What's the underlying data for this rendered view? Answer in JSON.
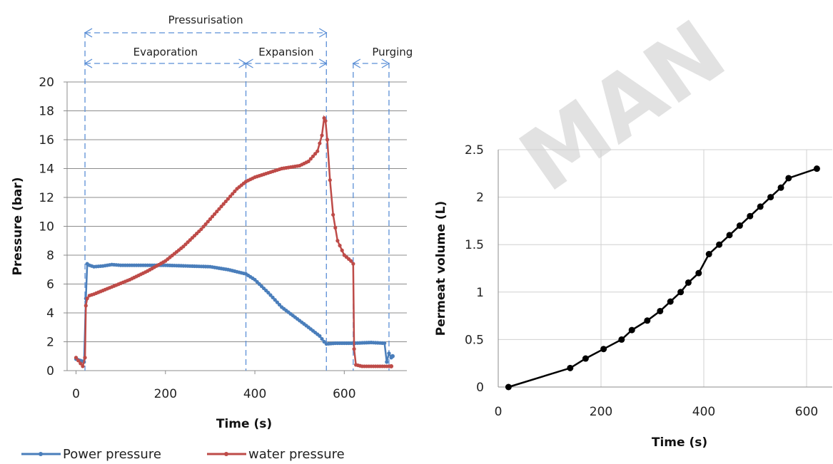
{
  "watermark": "MAN",
  "chart_data": [
    {
      "type": "line",
      "xlabel": "Time (s)",
      "ylabel": "Pressure (bar)",
      "xlim": [
        -20,
        740
      ],
      "ylim": [
        0,
        20
      ],
      "xticks": [
        0,
        200,
        400,
        600
      ],
      "yticks": [
        0,
        2,
        4,
        6,
        8,
        10,
        12,
        14,
        16,
        18,
        20
      ],
      "grid": "horizontal",
      "legend_position": "bottom",
      "series": [
        {
          "name": "Power pressure",
          "color": "#4a7ebb",
          "x": [
            0,
            10,
            18,
            22,
            25,
            30,
            40,
            60,
            80,
            100,
            150,
            200,
            250,
            300,
            340,
            380,
            400,
            430,
            460,
            490,
            520,
            545,
            555,
            560,
            580,
            620,
            660,
            690,
            695,
            700,
            705,
            708
          ],
          "y": [
            0.8,
            0.7,
            0.6,
            5.0,
            7.4,
            7.3,
            7.2,
            7.25,
            7.35,
            7.3,
            7.3,
            7.3,
            7.25,
            7.2,
            7.0,
            6.7,
            6.3,
            5.4,
            4.4,
            3.7,
            3.0,
            2.4,
            2.0,
            1.85,
            1.9,
            1.9,
            1.95,
            1.9,
            0.6,
            1.2,
            0.9,
            1.0
          ]
        },
        {
          "name": "water pressure",
          "color": "#be4b48",
          "x": [
            0,
            10,
            15,
            20,
            22,
            25,
            30,
            40,
            80,
            120,
            160,
            200,
            240,
            280,
            320,
            360,
            380,
            400,
            420,
            440,
            460,
            480,
            500,
            520,
            540,
            550,
            555,
            558,
            562,
            568,
            575,
            585,
            600,
            615,
            620,
            622,
            626,
            640,
            670,
            700,
            705
          ],
          "y": [
            0.9,
            0.5,
            0.3,
            0.9,
            4.5,
            5.0,
            5.2,
            5.3,
            5.8,
            6.3,
            6.9,
            7.6,
            8.6,
            9.8,
            11.2,
            12.6,
            13.1,
            13.4,
            13.6,
            13.8,
            14.0,
            14.1,
            14.2,
            14.5,
            15.2,
            16.3,
            17.5,
            17.3,
            16.0,
            13.2,
            10.8,
            9.0,
            8.0,
            7.6,
            7.4,
            1.5,
            0.4,
            0.3,
            0.3,
            0.3,
            0.3
          ]
        }
      ],
      "phases": [
        {
          "label": "Pressurisation",
          "start": 20,
          "end": 560,
          "row": 0
        },
        {
          "label": "Evaporation",
          "start": 20,
          "end": 380,
          "row": 1
        },
        {
          "label": "Expansion",
          "start": 380,
          "end": 560,
          "row": 1
        },
        {
          "label": "Purging",
          "start": 620,
          "end": 700,
          "row": 1
        }
      ],
      "phase_boundaries": [
        20,
        380,
        560,
        620,
        700
      ]
    },
    {
      "type": "line",
      "xlabel": "Time (s)",
      "ylabel": "Permeat volume (L)",
      "xlim": [
        0,
        650
      ],
      "ylim": [
        0,
        2.5
      ],
      "xticks": [
        0,
        200,
        400,
        600
      ],
      "yticks": [
        0,
        0.5,
        1,
        1.5,
        2,
        2.5
      ],
      "ytick_labels": [
        "0",
        "0.5",
        "1",
        "1.5",
        "2",
        "2.5"
      ],
      "grid": "both",
      "series": [
        {
          "color": "#000000",
          "x": [
            20,
            140,
            170,
            205,
            240,
            260,
            290,
            315,
            335,
            355,
            370,
            390,
            410,
            430,
            450,
            470,
            490,
            510,
            530,
            550,
            565,
            620
          ],
          "y": [
            0,
            0.2,
            0.3,
            0.4,
            0.5,
            0.6,
            0.7,
            0.8,
            0.9,
            1.0,
            1.1,
            1.2,
            1.4,
            1.5,
            1.6,
            1.7,
            1.8,
            1.9,
            2.0,
            2.1,
            2.2,
            2.3
          ]
        }
      ]
    }
  ]
}
